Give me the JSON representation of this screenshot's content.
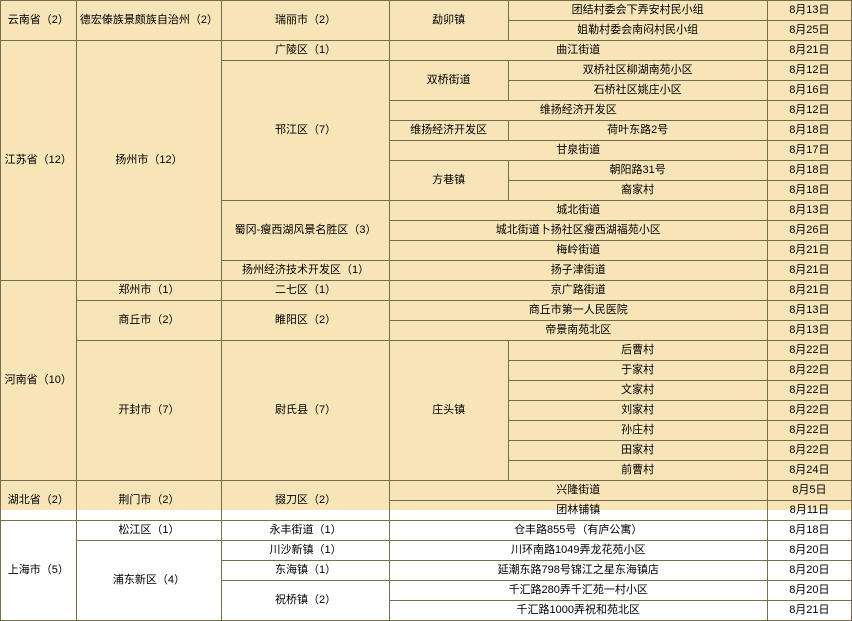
{
  "rows": [
    {
      "c1": "云南省（2）",
      "c1rs": 2,
      "c2": "德宏傣族景颇族自治州（2）",
      "c2rs": 2,
      "c3": "瑞丽市（2）",
      "c3rs": 2,
      "c4": "勐卯镇",
      "c4rs": 2,
      "c5": "团结村委会下弄安村民小组",
      "c6": "8月13日"
    },
    {
      "c5": "姐勒村委会南闷村民小组",
      "c6": "8月25日"
    },
    {
      "c1": "江苏省（12）",
      "c1rs": 12,
      "c2": "扬州市（12）",
      "c2rs": 12,
      "c3": "广陵区（1）",
      "c4": "曲江街道",
      "c4cs": 2,
      "c6": "8月21日"
    },
    {
      "c3": "邗江区（7）",
      "c3rs": 7,
      "c4": "双桥街道",
      "c4rs": 2,
      "c5": "双桥社区柳湖南苑小区",
      "c6": "8月12日"
    },
    {
      "c5": "石桥社区姚庄小区",
      "c6": "8月16日"
    },
    {
      "c4": "维扬经济开发区",
      "c4cs": 2,
      "c6": "8月12日"
    },
    {
      "c4": "维扬经济开发区",
      "c5": "荷叶东路2号",
      "c6": "8月18日"
    },
    {
      "c4": "甘泉街道",
      "c4cs": 2,
      "c6": "8月17日"
    },
    {
      "c4": "方巷镇",
      "c4rs": 2,
      "c5": "朝阳路31号",
      "c6": "8月18日"
    },
    {
      "c5": "裔家村",
      "c6": "8月18日"
    },
    {
      "c3": "蜀冈-瘦西湖风景名胜区（3）",
      "c3rs": 3,
      "c4": "城北街道",
      "c4cs": 2,
      "c6": "8月13日"
    },
    {
      "c4": "城北街道卜扬社区瘦西湖福苑小区",
      "c4cs": 2,
      "c6": "8月26日"
    },
    {
      "c4": "梅岭街道",
      "c4cs": 2,
      "c6": "8月21日"
    },
    {
      "c3": "扬州经济技术开发区（1）",
      "c4": "扬子津街道",
      "c4cs": 2,
      "c6": "8月21日"
    },
    {
      "c1": "河南省（10）",
      "c1rs": 10,
      "c2": "郑州市（1）",
      "c3": "二七区（1）",
      "c4": "京广路街道",
      "c4cs": 2,
      "c6": "8月21日"
    },
    {
      "c2": "商丘市（2）",
      "c2rs": 2,
      "c3": "睢阳区（2）",
      "c3rs": 2,
      "c4": "商丘市第一人民医院",
      "c4cs": 2,
      "c6": "8月13日"
    },
    {
      "c4": "帝景南苑北区",
      "c4cs": 2,
      "c6": "8月13日"
    },
    {
      "c2": "开封市（7）",
      "c2rs": 7,
      "c3": "尉氏县（7）",
      "c3rs": 7,
      "c4": "庄头镇",
      "c4rs": 7,
      "c5": "后曹村",
      "c6": "8月22日"
    },
    {
      "c5": "于家村",
      "c6": "8月22日"
    },
    {
      "c5": "文家村",
      "c6": "8月22日"
    },
    {
      "c5": "刘家村",
      "c6": "8月22日"
    },
    {
      "c5": "孙庄村",
      "c6": "8月22日"
    },
    {
      "c5": "田家村",
      "c6": "8月22日"
    },
    {
      "c5": "前曹村",
      "c6": "8月24日"
    },
    {
      "c1": "湖北省（2）",
      "c1rs": 2,
      "c2": "荆门市（2）",
      "c2rs": 2,
      "c3": "掇刀区（2）",
      "c3rs": 2,
      "c4": "兴隆街道",
      "c4cs": 2,
      "c6": "8月5日"
    },
    {
      "c4": "团林铺镇",
      "c4cs": 2,
      "c6": "8月11日"
    },
    {
      "c1": "上海市（5）",
      "c1rs": 5,
      "c2": "松江区（1）",
      "c3": "永丰街道（1）",
      "c4": "仓丰路855号（有庐公寓）",
      "c4cs": 2,
      "c6": "8月18日"
    },
    {
      "c2": "浦东新区（4）",
      "c2rs": 4,
      "c3": "川沙新镇（1）",
      "c4": "川环南路1049弄龙花苑小区",
      "c4cs": 2,
      "c6": "8月20日"
    },
    {
      "c3": "东海镇（1）",
      "c4": "延潮东路798号锦江之星东海镇店",
      "c4cs": 2,
      "c6": "8月20日"
    },
    {
      "c3": "祝桥镇（2）",
      "c3rs": 2,
      "c4": "千汇路280弄千汇苑一村小区",
      "c4cs": 2,
      "c6": "8月20日"
    },
    {
      "c4": "千汇路1000弄祝和苑北区",
      "c4cs": 2,
      "c6": "8月21日"
    }
  ]
}
